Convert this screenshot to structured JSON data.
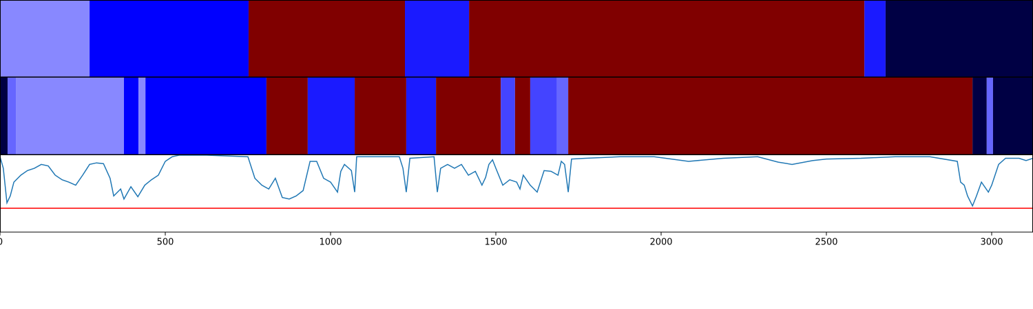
{
  "chart_data": [
    {
      "type": "segments",
      "xlim": [
        0,
        3125
      ],
      "segments": [
        {
          "start": 0,
          "end": 271,
          "color": "#8888ff"
        },
        {
          "start": 271,
          "end": 752,
          "color": "#0000ff"
        },
        {
          "start": 752,
          "end": 1225,
          "color": "#800000"
        },
        {
          "start": 1225,
          "end": 1419,
          "color": "#1a1aff"
        },
        {
          "start": 1419,
          "end": 2615,
          "color": "#800000"
        },
        {
          "start": 2615,
          "end": 2679,
          "color": "#1a1aff"
        },
        {
          "start": 2679,
          "end": 3125,
          "color": "#000044"
        }
      ]
    },
    {
      "type": "segments",
      "xlim": [
        0,
        3125
      ],
      "segments": [
        {
          "start": 0,
          "end": 23,
          "color": "#000044"
        },
        {
          "start": 23,
          "end": 48,
          "color": "#6666ff"
        },
        {
          "start": 48,
          "end": 375,
          "color": "#8888ff"
        },
        {
          "start": 375,
          "end": 419,
          "color": "#0000ff"
        },
        {
          "start": 419,
          "end": 440,
          "color": "#8888ff"
        },
        {
          "start": 440,
          "end": 806,
          "color": "#0000ff"
        },
        {
          "start": 806,
          "end": 931,
          "color": "#800000"
        },
        {
          "start": 931,
          "end": 1073,
          "color": "#1a1aff"
        },
        {
          "start": 1073,
          "end": 1229,
          "color": "#800000"
        },
        {
          "start": 1229,
          "end": 1319,
          "color": "#1a1aff"
        },
        {
          "start": 1319,
          "end": 1515,
          "color": "#800000"
        },
        {
          "start": 1515,
          "end": 1558,
          "color": "#4444ff"
        },
        {
          "start": 1558,
          "end": 1604,
          "color": "#800000"
        },
        {
          "start": 1604,
          "end": 1685,
          "color": "#4444ff"
        },
        {
          "start": 1685,
          "end": 1719,
          "color": "#6666ff"
        },
        {
          "start": 1719,
          "end": 2942,
          "color": "#800000"
        },
        {
          "start": 2942,
          "end": 2985,
          "color": "#000044"
        },
        {
          "start": 2985,
          "end": 3004,
          "color": "#6666ff"
        },
        {
          "start": 3004,
          "end": 3125,
          "color": "#000044"
        }
      ]
    },
    {
      "type": "line",
      "xlim": [
        0,
        3125
      ],
      "xticks": [
        0,
        500,
        1000,
        1500,
        2000,
        2500,
        3000
      ],
      "ylim": [
        0,
        1
      ],
      "color": "#1f77b4",
      "threshold": {
        "value": 0.31,
        "color": "#ff0000"
      },
      "x": [
        0,
        10,
        21,
        31,
        42,
        63,
        83,
        104,
        125,
        146,
        167,
        188,
        208,
        229,
        250,
        271,
        292,
        313,
        333,
        344,
        365,
        375,
        396,
        417,
        438,
        458,
        479,
        500,
        521,
        542,
        625,
        750,
        771,
        792,
        813,
        833,
        854,
        875,
        896,
        917,
        938,
        958,
        979,
        1000,
        1021,
        1031,
        1042,
        1063,
        1073,
        1079,
        1208,
        1219,
        1229,
        1240,
        1313,
        1323,
        1333,
        1354,
        1375,
        1396,
        1417,
        1438,
        1458,
        1469,
        1479,
        1490,
        1500,
        1521,
        1542,
        1563,
        1573,
        1583,
        1604,
        1625,
        1646,
        1667,
        1688,
        1698,
        1708,
        1719,
        1729,
        1771,
        1875,
        1979,
        2083,
        2188,
        2292,
        2354,
        2396,
        2458,
        2500,
        2604,
        2708,
        2813,
        2896,
        2906,
        2917,
        2927,
        2942,
        2954,
        2969,
        2990,
        3000,
        3021,
        3042,
        3083,
        3104,
        3125
      ],
      "values": [
        0.98,
        0.83,
        0.38,
        0.47,
        0.65,
        0.74,
        0.8,
        0.83,
        0.88,
        0.86,
        0.74,
        0.68,
        0.65,
        0.61,
        0.74,
        0.88,
        0.9,
        0.89,
        0.7,
        0.47,
        0.56,
        0.43,
        0.59,
        0.46,
        0.61,
        0.68,
        0.74,
        0.92,
        0.98,
        1.0,
        1.0,
        0.98,
        0.7,
        0.61,
        0.56,
        0.7,
        0.45,
        0.43,
        0.47,
        0.54,
        0.92,
        0.92,
        0.7,
        0.65,
        0.52,
        0.79,
        0.88,
        0.8,
        0.52,
        0.98,
        0.98,
        0.83,
        0.52,
        0.96,
        0.98,
        0.52,
        0.83,
        0.88,
        0.83,
        0.88,
        0.74,
        0.79,
        0.61,
        0.71,
        0.88,
        0.94,
        0.83,
        0.61,
        0.68,
        0.65,
        0.56,
        0.74,
        0.61,
        0.52,
        0.8,
        0.79,
        0.74,
        0.92,
        0.88,
        0.52,
        0.95,
        0.96,
        0.98,
        0.98,
        0.92,
        0.96,
        0.98,
        0.91,
        0.88,
        0.93,
        0.95,
        0.96,
        0.98,
        0.98,
        0.92,
        0.65,
        0.61,
        0.47,
        0.34,
        0.47,
        0.65,
        0.52,
        0.61,
        0.88,
        0.96,
        0.96,
        0.93,
        0.96
      ]
    }
  ]
}
